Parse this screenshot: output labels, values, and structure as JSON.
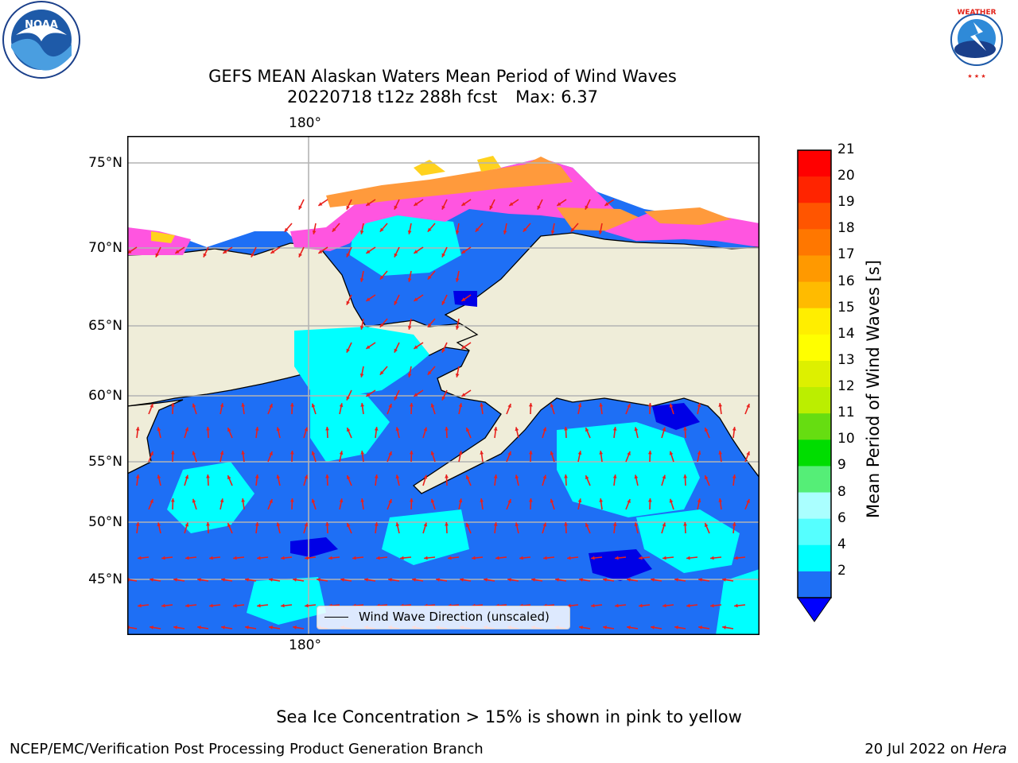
{
  "title": {
    "line1": "GEFS MEAN Alaskan Waters Mean Period of Wind Waves",
    "run": "20220718 t12z 288h fcst",
    "max": "Max: 6.37"
  },
  "map": {
    "longitude_label_top": "180°",
    "longitude_label_bottom": "180°",
    "latitude_labels": [
      "75°N",
      "70°N",
      "65°N",
      "60°N",
      "55°N",
      "50°N",
      "45°N"
    ],
    "legend_label": "Wind Wave Direction (unscaled)",
    "colors": {
      "ocean_low": "#1e6ff5",
      "ocean_mid": "#00ffff",
      "ocean_lowest": "#0000e6",
      "land": "#efedd9",
      "ice_pink": "#ff55e0",
      "ice_orange": "#ff9a3c",
      "ice_yellow": "#ffd21e",
      "arrow": "#e8201c",
      "grid": "#b4b4b4"
    }
  },
  "colorbar": {
    "label": "Mean Period of Wind Waves [s]",
    "ticks": [
      "21",
      "20",
      "19",
      "18",
      "17",
      "16",
      "15",
      "14",
      "13",
      "12",
      "11",
      "10",
      "9",
      "8",
      "6",
      "4",
      "2"
    ],
    "colors_top_to_bottom": [
      "#ff0000",
      "#ff2400",
      "#ff5500",
      "#ff7700",
      "#ff9900",
      "#ffbb00",
      "#ffee00",
      "#ffff00",
      "#ddf000",
      "#bbee00",
      "#66dd11",
      "#00dd00",
      "#55ee77",
      "#aaffff",
      "#55ffff",
      "#00ffff",
      "#1e6ff5"
    ],
    "extend_color": "#0000ff"
  },
  "footnote": "Sea Ice Concentration > 15% is shown in pink to yellow",
  "credit_left": "NCEP/EMC/Verification Post Processing Product Generation Branch",
  "credit_right_date": "20 Jul 2022 on",
  "credit_right_host": "Hera",
  "logos": {
    "noaa": "NOAA",
    "nws": "NATIONAL WEATHER SERVICE"
  }
}
